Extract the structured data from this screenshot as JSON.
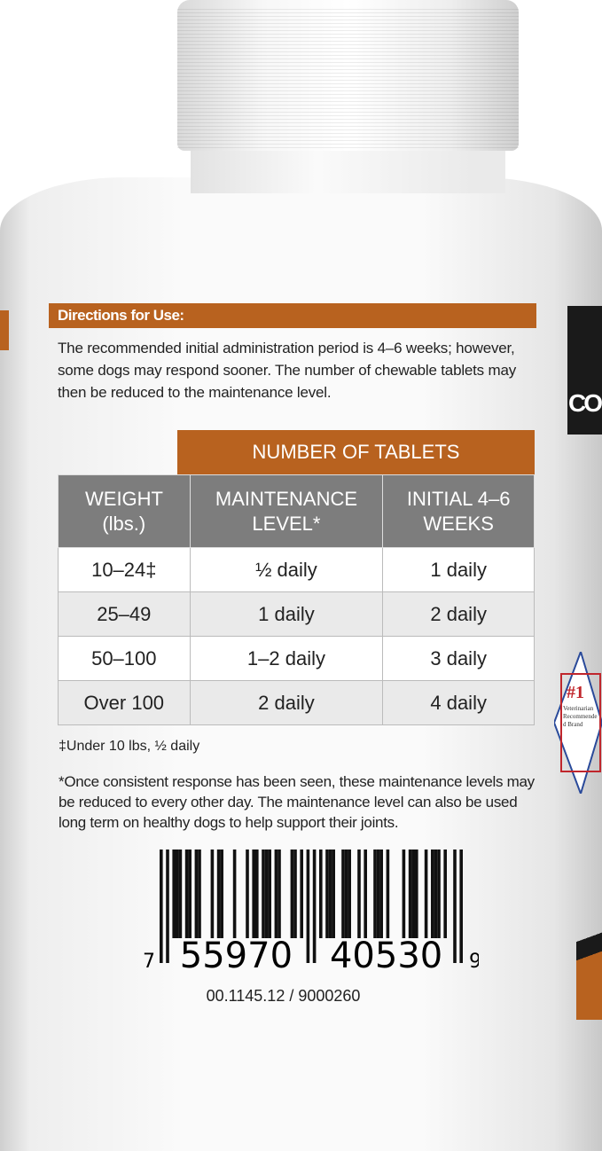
{
  "directions": {
    "heading": "Directions for Use:",
    "text": "The recommended initial administration period is 4–6 weeks; however, some dogs may respond sooner. The number of chewable tablets may then be reduced to the maintenance level."
  },
  "table": {
    "group_header": "NUMBER OF TABLETS",
    "columns": [
      "WEIGHT (lbs.)",
      "MAINTENANCE LEVEL*",
      "INITIAL 4–6 WEEKS"
    ],
    "rows": [
      [
        "10–24‡",
        "½ daily",
        "1 daily"
      ],
      [
        "25–49",
        "1 daily",
        "2 daily"
      ],
      [
        "50–100",
        "1–2 daily",
        "3 daily"
      ],
      [
        "Over 100",
        "2 daily",
        "4 daily"
      ]
    ]
  },
  "footnotes": {
    "dagger": "‡Under 10 lbs, ½ daily",
    "asterisk": "*Once consistent response has been seen, these maintenance levels may be reduced to every other day. The maintenance level can also be used long term on healthy dogs to help support their joints."
  },
  "barcode": {
    "first_digit": "7",
    "left_group": "55970",
    "right_group": "40530",
    "check_digit": "9",
    "lot_code": "00.1145.12 / 9000260"
  },
  "badge": {
    "rank": "#1",
    "text": "Veterinarian Recommended Brand"
  },
  "brand_fragment": "CO",
  "colors": {
    "accent": "#b8621f",
    "table_header": "#7d7d7d",
    "badge_red": "#c0262c",
    "badge_blue": "#2a4a9a"
  }
}
